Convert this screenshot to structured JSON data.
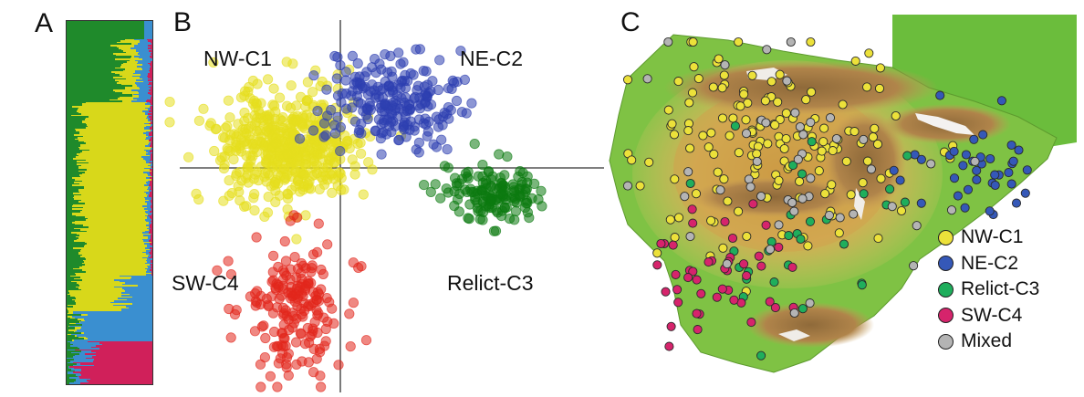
{
  "panels": {
    "a": "A",
    "b": "B",
    "c": "C"
  },
  "clusters": {
    "nw": "NW-C1",
    "ne": "NE-C2",
    "relict": "Relict-C3",
    "sw": "SW-C4"
  },
  "colors": {
    "nw": "#e6de1e",
    "ne": "#2e3fb0",
    "relict": "#0c7a10",
    "sw": "#e2261c",
    "structure_pink": "#d0205a",
    "structure_blue": "#3a8fd0",
    "mixed": "#b4b4b4"
  },
  "legend": [
    {
      "label": "NW-C1",
      "color": "#ece13a"
    },
    {
      "label": "NE-C2",
      "color": "#3558b8"
    },
    {
      "label": "Relict-C3",
      "color": "#1fae5c"
    },
    {
      "label": "SW-C4",
      "color": "#d6246c"
    },
    {
      "label": "Mixed",
      "color": "#b4b4b4"
    }
  ]
}
